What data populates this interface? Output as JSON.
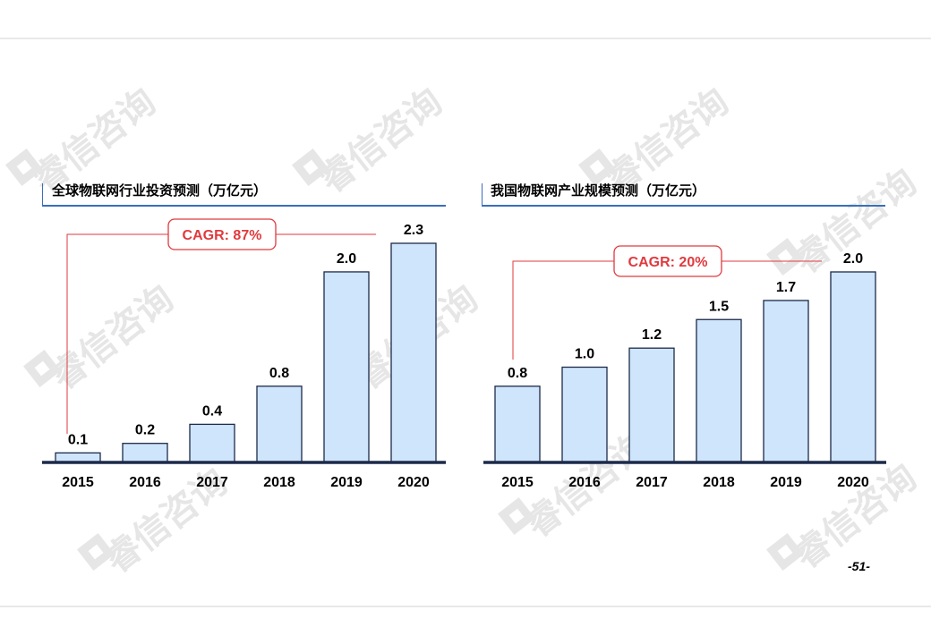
{
  "page_number": "-51-",
  "watermark_text": "睿信咨询",
  "colors": {
    "bar_fill": "#cfe5fb",
    "bar_stroke": "#1c2a4a",
    "axis": "#1c2a4a",
    "title_rule": "#3a6fbd",
    "cagr": "#e03a3e",
    "watermark": "#e6e6e6"
  },
  "chart_data": [
    {
      "type": "bar",
      "title": "全球物联网行业投资预测（万亿元）",
      "categories": [
        "2015",
        "2016",
        "2017",
        "2018",
        "2019",
        "2020"
      ],
      "values": [
        0.1,
        0.2,
        0.4,
        0.8,
        2.0,
        2.3
      ],
      "value_labels": [
        "0.1",
        "0.2",
        "0.4",
        "0.8",
        "2.0",
        "2.3"
      ],
      "ylim": [
        0,
        2.3
      ],
      "grid": false,
      "annotation": "CAGR: 87%"
    },
    {
      "type": "bar",
      "title": "我国物联网产业规模预测（万亿元）",
      "categories": [
        "2015",
        "2016",
        "2017",
        "2018",
        "2019",
        "2020"
      ],
      "values": [
        0.8,
        1.0,
        1.2,
        1.5,
        1.7,
        2.0
      ],
      "value_labels": [
        "0.8",
        "1.0",
        "1.2",
        "1.5",
        "1.7",
        "2.0"
      ],
      "ylim": [
        0,
        2.0
      ],
      "grid": false,
      "annotation": "CAGR: 20%"
    }
  ]
}
